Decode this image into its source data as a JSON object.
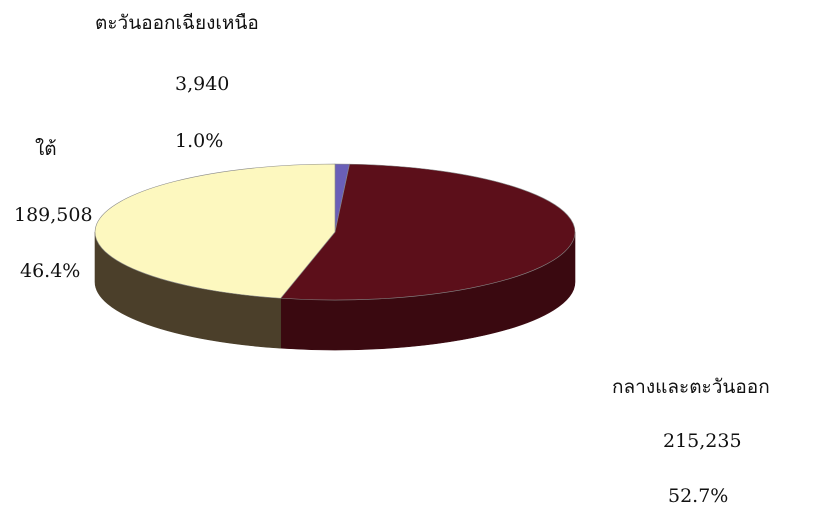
{
  "chart_data": {
    "type": "pie",
    "style": "3d-exploded",
    "title": "",
    "slices": [
      {
        "name": "ตะวันออกเฉียงเหนือ",
        "value": 3940,
        "value_label": "3,940",
        "percent_label": "1.0%",
        "color": "#6a5fb8"
      },
      {
        "name": "กลางและตะวันออก",
        "value": 215235,
        "value_label": "215,235",
        "percent_label": "52.7%",
        "color": "#5c0f1a"
      },
      {
        "name": "ใต้",
        "value": 189508,
        "value_label": "189,508",
        "percent_label": "46.4%",
        "color": "#fdf8bf"
      }
    ],
    "side_colors": [
      "#3e3a6e",
      "#3a0910",
      "#4b3f2a"
    ]
  }
}
